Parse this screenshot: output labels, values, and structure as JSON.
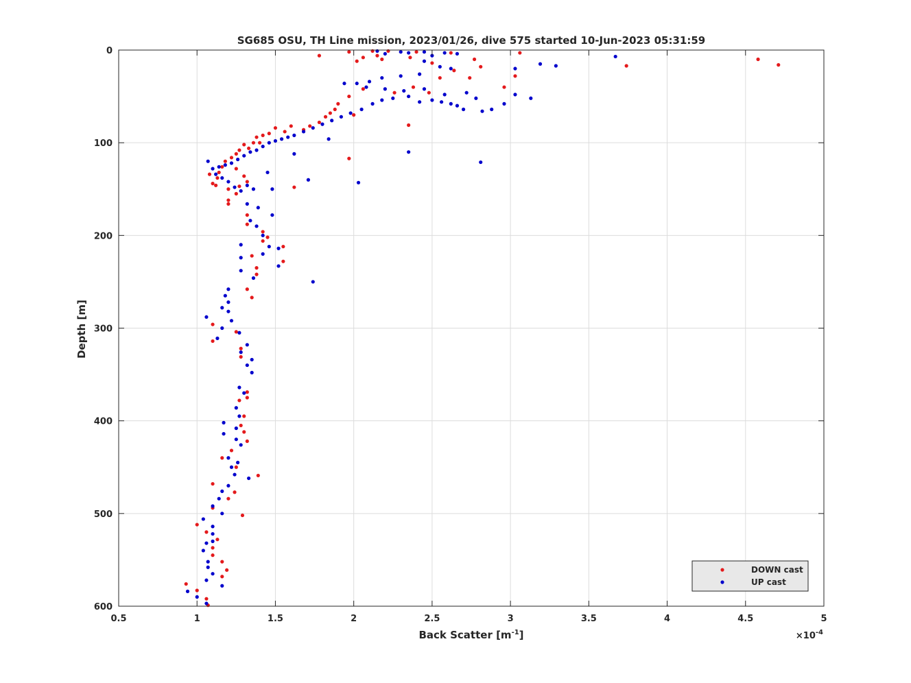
{
  "chart_data": {
    "type": "scatter",
    "title": "SG685 OSU, TH Line mission, 2023/01/26, dive 575 started 10-Jun-2023 05:31:59",
    "xlabel_main": "Back Scatter [m",
    "xlabel_sup": "-1",
    "xlabel_tail": "]",
    "ylabel": "Depth [m]",
    "xlim": [
      0.5,
      5
    ],
    "ylim": [
      0,
      600
    ],
    "y_reversed": true,
    "x_scale_base": "×10",
    "x_scale_exp": "-4",
    "xticks": [
      0.5,
      1,
      1.5,
      2,
      2.5,
      3,
      3.5,
      4,
      4.5,
      5
    ],
    "xtick_labels": [
      "0.5",
      "1",
      "1.5",
      "2",
      "2.5",
      "3",
      "3.5",
      "4",
      "4.5",
      "5"
    ],
    "yticks": [
      0,
      100,
      200,
      300,
      400,
      500,
      600
    ],
    "ytick_labels": [
      "0",
      "100",
      "200",
      "300",
      "400",
      "500",
      "600"
    ],
    "grid": true,
    "legend_position": "bottom-right",
    "series": [
      {
        "name": "DOWN cast",
        "color": "#e41a1c",
        "points": [
          [
            1.97,
            2
          ],
          [
            2.12,
            1
          ],
          [
            2.22,
            1
          ],
          [
            1.78,
            6
          ],
          [
            2.15,
            6
          ],
          [
            2.4,
            2
          ],
          [
            2.62,
            3
          ],
          [
            3.06,
            3
          ],
          [
            4.58,
            10
          ],
          [
            4.71,
            16
          ],
          [
            3.74,
            17
          ],
          [
            2.81,
            18
          ],
          [
            2.77,
            10
          ],
          [
            2.06,
            8
          ],
          [
            2.18,
            10
          ],
          [
            2.02,
            12
          ],
          [
            2.36,
            8
          ],
          [
            2.5,
            14
          ],
          [
            2.64,
            22
          ],
          [
            2.96,
            40
          ],
          [
            3.03,
            28
          ],
          [
            2.74,
            30
          ],
          [
            2.55,
            30
          ],
          [
            2.38,
            40
          ],
          [
            2.48,
            46
          ],
          [
            2.26,
            46
          ],
          [
            2.06,
            42
          ],
          [
            1.97,
            50
          ],
          [
            1.9,
            58
          ],
          [
            1.88,
            64
          ],
          [
            2.0,
            70
          ],
          [
            1.85,
            68
          ],
          [
            1.82,
            72
          ],
          [
            1.78,
            78
          ],
          [
            1.72,
            82
          ],
          [
            1.68,
            86
          ],
          [
            1.6,
            82
          ],
          [
            1.56,
            88
          ],
          [
            1.5,
            84
          ],
          [
            1.46,
            90
          ],
          [
            1.42,
            92
          ],
          [
            1.38,
            94
          ],
          [
            1.4,
            100
          ],
          [
            1.36,
            100
          ],
          [
            1.33,
            106
          ],
          [
            1.3,
            102
          ],
          [
            1.27,
            108
          ],
          [
            1.25,
            112
          ],
          [
            1.22,
            116
          ],
          [
            1.18,
            120
          ],
          [
            1.16,
            126
          ],
          [
            1.14,
            132
          ],
          [
            1.13,
            138
          ],
          [
            1.1,
            144
          ],
          [
            1.12,
            146
          ],
          [
            1.08,
            134
          ],
          [
            1.2,
            150
          ],
          [
            1.25,
            155
          ],
          [
            1.27,
            147
          ],
          [
            1.62,
            148
          ],
          [
            1.97,
            117
          ],
          [
            2.35,
            81
          ],
          [
            1.25,
            128
          ],
          [
            1.3,
            136
          ],
          [
            1.32,
            142
          ],
          [
            1.2,
            166
          ],
          [
            1.2,
            162
          ],
          [
            1.32,
            178
          ],
          [
            1.32,
            188
          ],
          [
            1.42,
            196
          ],
          [
            1.45,
            202
          ],
          [
            1.42,
            206
          ],
          [
            1.55,
            212
          ],
          [
            1.55,
            228
          ],
          [
            1.35,
            222
          ],
          [
            1.38,
            235
          ],
          [
            1.38,
            242
          ],
          [
            1.32,
            258
          ],
          [
            1.35,
            267
          ],
          [
            1.25,
            304
          ],
          [
            1.1,
            296
          ],
          [
            1.1,
            314
          ],
          [
            1.28,
            322
          ],
          [
            1.28,
            331
          ],
          [
            1.32,
            369
          ],
          [
            1.32,
            375
          ],
          [
            1.27,
            378
          ],
          [
            1.3,
            395
          ],
          [
            1.28,
            405
          ],
          [
            1.3,
            412
          ],
          [
            1.32,
            422
          ],
          [
            1.25,
            450
          ],
          [
            1.22,
            432
          ],
          [
            1.16,
            440
          ],
          [
            1.24,
            477
          ],
          [
            1.2,
            484
          ],
          [
            1.1,
            468
          ],
          [
            1.39,
            459
          ],
          [
            1.29,
            502
          ],
          [
            1.1,
            494
          ],
          [
            1.0,
            512
          ],
          [
            1.13,
            528
          ],
          [
            1.06,
            520
          ],
          [
            1.1,
            537
          ],
          [
            1.16,
            552
          ],
          [
            1.19,
            561
          ],
          [
            1.16,
            568
          ],
          [
            1.1,
            545
          ],
          [
            0.93,
            576
          ],
          [
            1.0,
            583
          ],
          [
            1.06,
            592
          ],
          [
            1.07,
            599
          ]
        ]
      },
      {
        "name": "UP cast",
        "color": "#0000cc",
        "points": [
          [
            2.15,
            1
          ],
          [
            2.3,
            2
          ],
          [
            2.45,
            2
          ],
          [
            2.58,
            3
          ],
          [
            2.2,
            4
          ],
          [
            2.35,
            3
          ],
          [
            2.5,
            6
          ],
          [
            2.66,
            4
          ],
          [
            3.67,
            7
          ],
          [
            3.19,
            15
          ],
          [
            3.29,
            17
          ],
          [
            2.45,
            12
          ],
          [
            2.55,
            18
          ],
          [
            2.62,
            20
          ],
          [
            3.03,
            20
          ],
          [
            2.42,
            26
          ],
          [
            2.3,
            28
          ],
          [
            2.18,
            30
          ],
          [
            2.1,
            34
          ],
          [
            2.02,
            36
          ],
          [
            1.94,
            36
          ],
          [
            2.08,
            40
          ],
          [
            2.2,
            42
          ],
          [
            2.32,
            44
          ],
          [
            2.45,
            42
          ],
          [
            2.58,
            48
          ],
          [
            2.72,
            46
          ],
          [
            2.78,
            52
          ],
          [
            3.03,
            48
          ],
          [
            3.13,
            52
          ],
          [
            2.96,
            58
          ],
          [
            2.88,
            64
          ],
          [
            2.82,
            66
          ],
          [
            2.7,
            64
          ],
          [
            2.66,
            60
          ],
          [
            2.62,
            58
          ],
          [
            2.56,
            56
          ],
          [
            2.5,
            54
          ],
          [
            2.42,
            56
          ],
          [
            2.35,
            50
          ],
          [
            2.25,
            52
          ],
          [
            2.18,
            54
          ],
          [
            2.12,
            58
          ],
          [
            2.05,
            64
          ],
          [
            1.98,
            68
          ],
          [
            1.92,
            72
          ],
          [
            1.86,
            76
          ],
          [
            1.8,
            80
          ],
          [
            1.74,
            84
          ],
          [
            1.68,
            88
          ],
          [
            1.62,
            92
          ],
          [
            1.58,
            94
          ],
          [
            1.54,
            96
          ],
          [
            1.5,
            98
          ],
          [
            1.46,
            100
          ],
          [
            1.42,
            104
          ],
          [
            1.38,
            108
          ],
          [
            1.34,
            110
          ],
          [
            1.3,
            114
          ],
          [
            1.26,
            118
          ],
          [
            1.22,
            122
          ],
          [
            1.18,
            124
          ],
          [
            1.14,
            126
          ],
          [
            1.1,
            128
          ],
          [
            1.07,
            120
          ],
          [
            1.12,
            134
          ],
          [
            1.16,
            138
          ],
          [
            1.2,
            142
          ],
          [
            1.24,
            148
          ],
          [
            1.28,
            152
          ],
          [
            1.32,
            146
          ],
          [
            1.36,
            150
          ],
          [
            1.48,
            150
          ],
          [
            1.45,
            132
          ],
          [
            1.62,
            112
          ],
          [
            1.84,
            96
          ],
          [
            2.35,
            110
          ],
          [
            2.81,
            121
          ],
          [
            2.03,
            143
          ],
          [
            1.71,
            140
          ],
          [
            1.32,
            166
          ],
          [
            1.39,
            170
          ],
          [
            1.34,
            184
          ],
          [
            1.38,
            190
          ],
          [
            1.42,
            200
          ],
          [
            1.48,
            178
          ],
          [
            1.46,
            212
          ],
          [
            1.52,
            214
          ],
          [
            1.42,
            220
          ],
          [
            1.52,
            233
          ],
          [
            1.28,
            210
          ],
          [
            1.28,
            224
          ],
          [
            1.28,
            238
          ],
          [
            1.36,
            246
          ],
          [
            1.74,
            250
          ],
          [
            1.2,
            258
          ],
          [
            1.18,
            265
          ],
          [
            1.2,
            272
          ],
          [
            1.16,
            278
          ],
          [
            1.2,
            282
          ],
          [
            1.06,
            288
          ],
          [
            1.22,
            292
          ],
          [
            1.16,
            300
          ],
          [
            1.27,
            305
          ],
          [
            1.13,
            311
          ],
          [
            1.32,
            318
          ],
          [
            1.28,
            326
          ],
          [
            1.35,
            334
          ],
          [
            1.32,
            340
          ],
          [
            1.35,
            348
          ],
          [
            1.27,
            364
          ],
          [
            1.3,
            370
          ],
          [
            1.25,
            386
          ],
          [
            1.27,
            395
          ],
          [
            1.17,
            402
          ],
          [
            1.25,
            408
          ],
          [
            1.17,
            414
          ],
          [
            1.25,
            420
          ],
          [
            1.28,
            426
          ],
          [
            1.2,
            440
          ],
          [
            1.26,
            445
          ],
          [
            1.24,
            458
          ],
          [
            1.22,
            450
          ],
          [
            1.33,
            462
          ],
          [
            1.2,
            470
          ],
          [
            1.16,
            476
          ],
          [
            1.14,
            484
          ],
          [
            1.1,
            492
          ],
          [
            1.16,
            500
          ],
          [
            1.04,
            506
          ],
          [
            1.1,
            514
          ],
          [
            1.1,
            522
          ],
          [
            1.06,
            532
          ],
          [
            1.1,
            530
          ],
          [
            1.04,
            540
          ],
          [
            1.07,
            552
          ],
          [
            1.07,
            558
          ],
          [
            1.1,
            565
          ],
          [
            1.16,
            578
          ],
          [
            1.06,
            572
          ],
          [
            0.94,
            584
          ],
          [
            1.0,
            590
          ],
          [
            1.06,
            597
          ]
        ]
      }
    ]
  }
}
